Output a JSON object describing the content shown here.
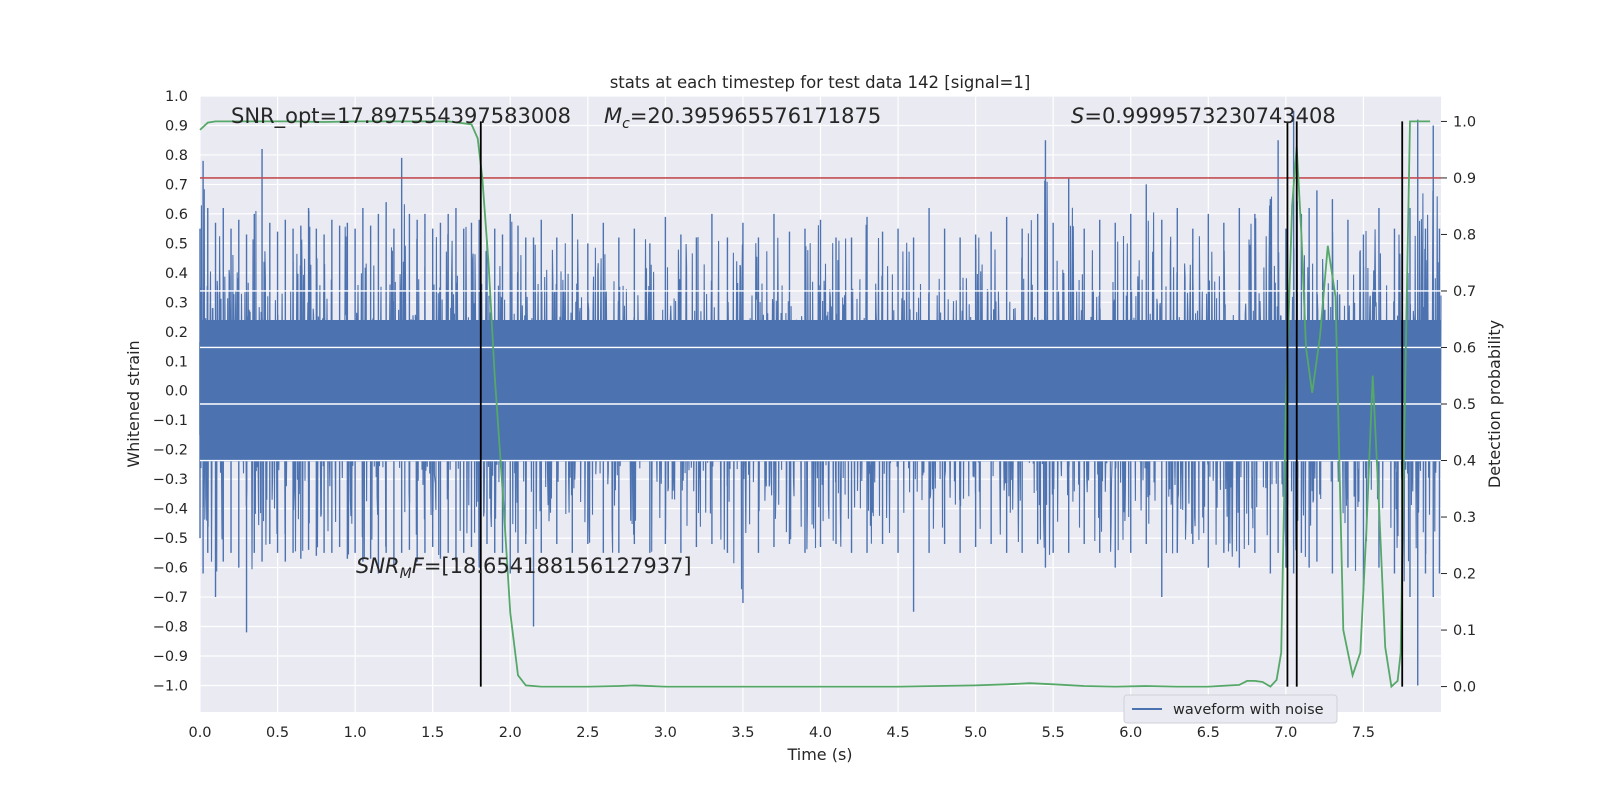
{
  "chart_data": {
    "type": "line",
    "title": "stats at each timestep for test data 142 [signal=1]",
    "xlabel": "Time (s)",
    "ylabel_left": "Whitened strain",
    "ylabel_right": "Detection probability",
    "xlim": [
      0.0,
      8.0
    ],
    "ylim_left": [
      -1.09,
      1.0
    ],
    "ylim_right": [
      -0.045,
      1.045
    ],
    "x_ticks": [
      0.0,
      0.5,
      1.0,
      1.5,
      2.0,
      2.5,
      3.0,
      3.5,
      4.0,
      4.5,
      5.0,
      5.5,
      6.0,
      6.5,
      7.0,
      7.5
    ],
    "x_tick_labels": [
      "0.0",
      "0.5",
      "1.0",
      "1.5",
      "2.0",
      "2.5",
      "3.0",
      "3.5",
      "4.0",
      "4.5",
      "5.0",
      "5.5",
      "6.0",
      "6.5",
      "7.0",
      "7.5"
    ],
    "y_left_ticks": [
      1.0,
      0.9,
      0.8,
      0.7,
      0.6,
      0.5,
      0.4,
      0.3,
      0.2,
      0.1,
      0.0,
      -0.1,
      -0.2,
      -0.3,
      -0.4,
      -0.5,
      -0.6,
      -0.7,
      -0.8,
      -0.9,
      -1.0
    ],
    "y_left_tick_labels": [
      "1.0",
      "0.9",
      "0.8",
      "0.7",
      "0.6",
      "0.5",
      "0.4",
      "0.3",
      "0.2",
      "0.1",
      "0.0",
      "−0.1",
      "−0.2",
      "−0.3",
      "−0.4",
      "−0.5",
      "−0.6",
      "−0.7",
      "−0.8",
      "−0.9",
      "−1.0"
    ],
    "y_right_ticks": [
      1.0,
      0.9,
      0.8,
      0.7,
      0.6,
      0.5,
      0.4,
      0.3,
      0.2,
      0.1,
      0.0
    ],
    "y_right_tick_labels": [
      "1.0",
      "0.9",
      "0.8",
      "0.7",
      "0.6",
      "0.5",
      "0.4",
      "0.3",
      "0.2",
      "0.1",
      "0.0"
    ],
    "threshold": 0.9,
    "detection_lines_x": [
      1.81,
      7.01,
      7.07,
      7.75
    ],
    "series": [
      {
        "name": "waveform with noise",
        "axis": "left",
        "color": "#4c72b0",
        "note": "dense noisy whitened strain; approximate envelope shown",
        "x": [
          0.0,
          0.02,
          0.05,
          0.1,
          0.15,
          0.2,
          0.25,
          0.3,
          0.35,
          0.4,
          0.45,
          0.5,
          0.55,
          0.6,
          0.65,
          0.7,
          0.75,
          0.8,
          0.85,
          0.9,
          0.95,
          1.0,
          1.05,
          1.1,
          1.15,
          1.2,
          1.25,
          1.3,
          1.35,
          1.4,
          1.45,
          1.5,
          1.55,
          1.6,
          1.65,
          1.7,
          1.75,
          1.8,
          1.85,
          1.9,
          1.95,
          2.0,
          2.05,
          2.1,
          2.15,
          2.2,
          2.3,
          2.4,
          2.5,
          2.6,
          2.7,
          2.8,
          2.9,
          3.0,
          3.1,
          3.2,
          3.3,
          3.4,
          3.5,
          3.6,
          3.7,
          3.8,
          3.9,
          4.0,
          4.1,
          4.2,
          4.3,
          4.4,
          4.5,
          4.6,
          4.7,
          4.8,
          4.9,
          5.0,
          5.1,
          5.2,
          5.3,
          5.4,
          5.45,
          5.5,
          5.6,
          5.7,
          5.8,
          5.9,
          6.0,
          6.1,
          6.2,
          6.3,
          6.4,
          6.5,
          6.6,
          6.7,
          6.8,
          6.9,
          6.95,
          7.0,
          7.05,
          7.1,
          7.15,
          7.2,
          7.3,
          7.4,
          7.5,
          7.6,
          7.7,
          7.75,
          7.8,
          7.85,
          7.9,
          7.95,
          7.99
        ],
        "upper": [
          0.55,
          0.78,
          0.62,
          0.57,
          0.62,
          0.55,
          0.58,
          0.53,
          0.6,
          0.82,
          0.57,
          0.54,
          0.58,
          0.55,
          0.56,
          0.62,
          0.55,
          0.53,
          0.58,
          0.56,
          0.57,
          0.55,
          0.62,
          0.56,
          0.6,
          0.64,
          0.55,
          0.79,
          0.6,
          0.58,
          0.6,
          0.55,
          0.57,
          0.6,
          0.62,
          0.55,
          0.57,
          0.58,
          0.51,
          0.55,
          0.53,
          0.6,
          0.56,
          0.52,
          0.52,
          0.58,
          0.52,
          0.6,
          0.5,
          0.57,
          0.52,
          0.55,
          0.5,
          0.59,
          0.53,
          0.52,
          0.6,
          0.52,
          0.57,
          0.52,
          0.6,
          0.54,
          0.55,
          0.58,
          0.52,
          0.52,
          0.59,
          0.54,
          0.55,
          0.52,
          0.62,
          0.55,
          0.52,
          0.53,
          0.54,
          0.59,
          0.55,
          0.6,
          0.85,
          0.57,
          0.72,
          0.55,
          0.58,
          0.57,
          0.6,
          0.7,
          0.58,
          0.62,
          0.55,
          0.6,
          0.57,
          0.62,
          0.6,
          0.65,
          0.85,
          0.55,
          0.95,
          0.6,
          0.62,
          0.68,
          0.65,
          0.58,
          0.53,
          0.62,
          0.55,
          0.6,
          0.62,
          0.92,
          0.55,
          0.9,
          0.55
        ],
        "lower": [
          -0.5,
          -0.62,
          -0.55,
          -0.7,
          -0.58,
          -0.55,
          -0.6,
          -0.82,
          -0.55,
          -0.58,
          -0.52,
          -0.55,
          -0.58,
          -0.55,
          -0.57,
          -0.54,
          -0.56,
          -0.55,
          -0.55,
          -0.53,
          -0.57,
          -0.55,
          -0.58,
          -0.57,
          -0.62,
          -0.55,
          -0.6,
          -0.55,
          -0.54,
          -0.58,
          -0.55,
          -0.53,
          -0.57,
          -0.55,
          -0.58,
          -0.55,
          -0.53,
          -0.6,
          -0.52,
          -0.55,
          -0.55,
          -0.62,
          -0.55,
          -0.52,
          -0.8,
          -0.55,
          -0.52,
          -0.55,
          -0.52,
          -0.55,
          -0.55,
          -0.52,
          -0.55,
          -0.52,
          -0.55,
          -0.53,
          -0.52,
          -0.55,
          -0.72,
          -0.55,
          -0.53,
          -0.52,
          -0.55,
          -0.53,
          -0.52,
          -0.55,
          -0.55,
          -0.52,
          -0.55,
          -0.75,
          -0.55,
          -0.52,
          -0.55,
          -0.53,
          -0.52,
          -0.55,
          -0.55,
          -0.52,
          -0.6,
          -0.55,
          -0.55,
          -0.52,
          -0.55,
          -0.6,
          -0.55,
          -0.52,
          -0.7,
          -0.55,
          -0.52,
          -0.6,
          -0.55,
          -0.6,
          -0.55,
          -0.62,
          -0.55,
          -0.6,
          -0.62,
          -0.55,
          -0.6,
          -0.58,
          -0.62,
          -0.6,
          -0.68,
          -0.6,
          -0.62,
          -0.65,
          -0.7,
          -1.0,
          -0.62,
          -0.7,
          -0.62
        ]
      },
      {
        "name": "detection probability",
        "axis": "right",
        "color": "#55a868",
        "x": [
          0.0,
          0.05,
          0.1,
          0.2,
          0.4,
          0.6,
          0.8,
          1.0,
          1.2,
          1.4,
          1.6,
          1.75,
          1.79,
          1.82,
          1.86,
          1.9,
          1.95,
          2.0,
          2.05,
          2.1,
          2.2,
          2.3,
          2.5,
          2.7,
          2.8,
          3.0,
          3.5,
          4.0,
          4.5,
          5.0,
          5.2,
          5.35,
          5.5,
          5.7,
          5.9,
          6.1,
          6.3,
          6.5,
          6.7,
          6.75,
          6.8,
          6.85,
          6.9,
          6.94,
          6.97,
          7.0,
          7.04,
          7.07,
          7.1,
          7.13,
          7.17,
          7.22,
          7.27,
          7.32,
          7.37,
          7.43,
          7.48,
          7.52,
          7.56,
          7.6,
          7.64,
          7.68,
          7.72,
          7.74,
          7.76,
          7.8,
          7.84,
          7.88,
          7.93
        ],
        "values": [
          0.985,
          0.998,
          1.0,
          1.0,
          1.0,
          1.0,
          0.999,
          1.0,
          1.0,
          1.0,
          1.0,
          0.995,
          0.97,
          0.9,
          0.75,
          0.55,
          0.35,
          0.13,
          0.02,
          0.002,
          0.0,
          0.0,
          0.0,
          0.001,
          0.002,
          0.0,
          0.0,
          0.0,
          0.0,
          0.002,
          0.004,
          0.006,
          0.004,
          0.001,
          0.0,
          0.001,
          0.0,
          0.0,
          0.003,
          0.01,
          0.01,
          0.008,
          0.0,
          0.012,
          0.06,
          0.5,
          0.85,
          0.955,
          0.8,
          0.6,
          0.52,
          0.62,
          0.78,
          0.69,
          0.1,
          0.02,
          0.06,
          0.28,
          0.55,
          0.32,
          0.07,
          0.0,
          0.01,
          0.06,
          0.4,
          1.0,
          1.0,
          1.0,
          1.0
        ]
      }
    ],
    "legend": {
      "position": "bottom-right",
      "entries": [
        "waveform with noise"
      ]
    },
    "annotations": {
      "snr_opt": "SNR_opt=17.897554397583008",
      "mc_sym": "M",
      "mc_sub": "c",
      "mc_val": "=20.395965576171875",
      "s_sym": "S",
      "s_val": "=0.9999573230743408",
      "snr_mf_sym": "SNR",
      "snr_mf_sub": "M",
      "snr_mf_F": "F",
      "snr_mf_val": "=[18.654188156127937]"
    },
    "colors": {
      "background": "#eaeaf2",
      "grid": "#ffffff",
      "strain": "#4c72b0",
      "probability": "#55a868",
      "threshold": "#c44e52",
      "event_lines": "#000000"
    }
  }
}
